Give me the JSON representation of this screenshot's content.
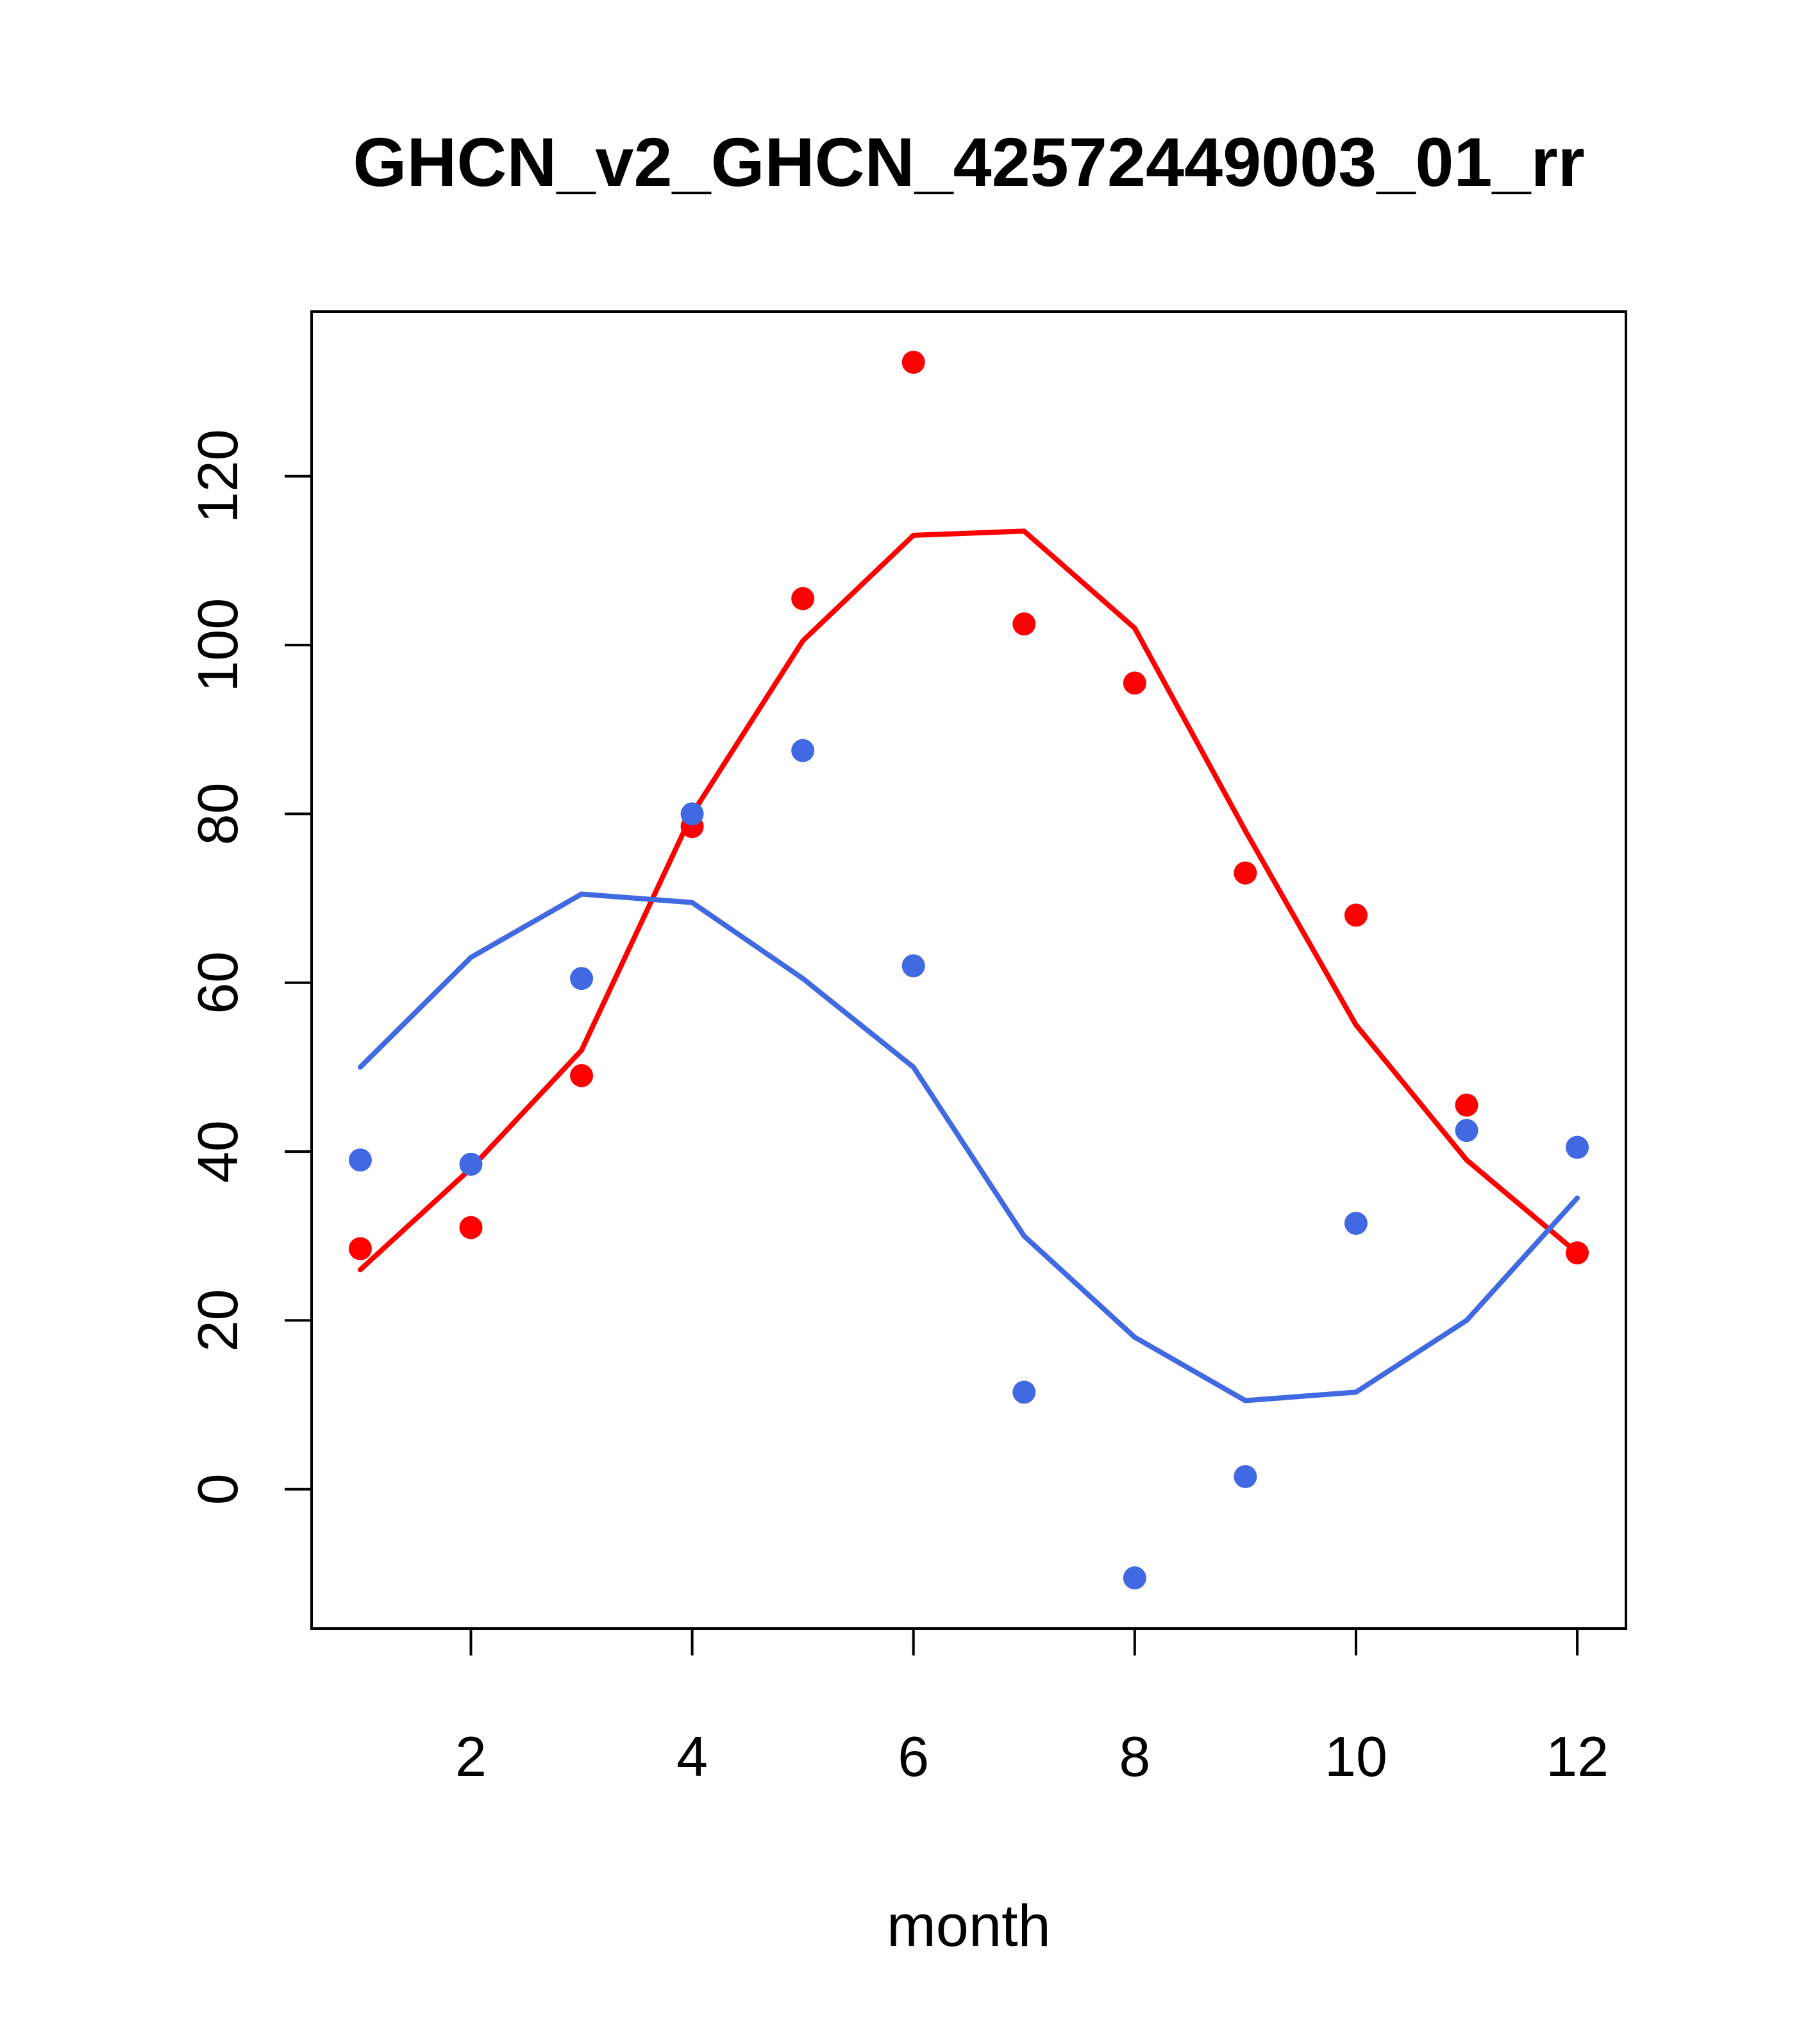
{
  "page": {
    "background": "#ffffff"
  },
  "colors": {
    "red_series": "#ff0000",
    "blue_series": "#4169e1",
    "axis": "#000000"
  },
  "chart_data": {
    "type": "scatter",
    "title": "GHCN_v2_GHCN_42572449003_01_rr",
    "xlabel": "month",
    "ylabel": "",
    "grid": false,
    "legend": "none",
    "x_ticks": [
      2,
      4,
      6,
      8,
      10,
      12
    ],
    "y_ticks": [
      0,
      20,
      40,
      60,
      80,
      100,
      120
    ],
    "xlim": [
      0.56,
      12.44
    ],
    "ylim": [
      -16.5,
      139.5
    ],
    "x": [
      1,
      2,
      3,
      4,
      5,
      6,
      7,
      8,
      9,
      10,
      11,
      12
    ],
    "series": [
      {
        "name": "red-points",
        "draw": "points",
        "color": "#ff0000",
        "values": [
          28.5,
          31,
          49,
          78.5,
          105.5,
          133.5,
          102.5,
          95.5,
          73,
          68,
          45.5,
          28
        ]
      },
      {
        "name": "blue-points",
        "draw": "points",
        "color": "#4169e1",
        "values": [
          39,
          38.5,
          60.5,
          80,
          87.5,
          62,
          11.5,
          -10.5,
          1.5,
          31.5,
          42.5,
          40.5
        ]
      },
      {
        "name": "red-smooth-line",
        "draw": "line",
        "color": "#ff0000",
        "values": [
          26,
          38,
          52,
          80,
          100.5,
          113,
          113.5,
          102,
          78,
          55,
          39,
          28
        ]
      },
      {
        "name": "blue-smooth-line",
        "draw": "line",
        "color": "#4169e1",
        "values": [
          50,
          63,
          70.5,
          69.5,
          60.5,
          50,
          30,
          18,
          10.5,
          11.5,
          20,
          34.5
        ]
      }
    ]
  }
}
